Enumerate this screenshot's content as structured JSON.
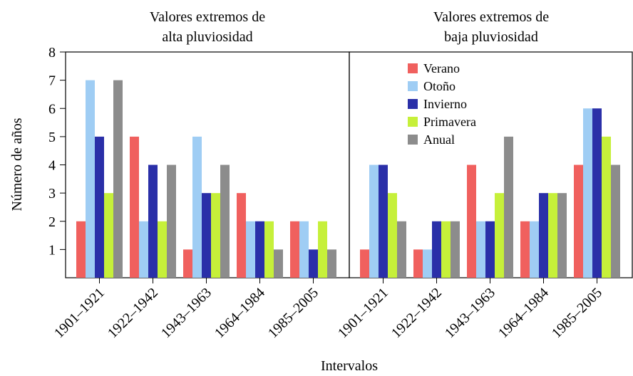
{
  "ylabel": "Número de años",
  "xlabel": "Intervalos",
  "chart_data": [
    {
      "type": "bar",
      "title": [
        "Valores extremos de",
        "alta pluviosidad"
      ],
      "categories": [
        "1901–1921",
        "1922–1942",
        "1943–1963",
        "1964–1984",
        "1985–2005"
      ],
      "series": [
        {
          "color": "#f0605e",
          "values": [
            2,
            5,
            1,
            3,
            2
          ]
        },
        {
          "color": "#9fcdf4",
          "values": [
            7,
            2,
            5,
            2,
            2
          ]
        },
        {
          "color": "#2a2fa8",
          "values": [
            5,
            4,
            3,
            2,
            1
          ]
        },
        {
          "color": "#c6f03a",
          "values": [
            3,
            2,
            3,
            2,
            2
          ]
        },
        {
          "color": "#8c8c8c",
          "values": [
            7,
            4,
            4,
            1,
            1
          ]
        }
      ],
      "ylim": [
        0,
        8
      ],
      "yticks": [
        1,
        2,
        3,
        4,
        5,
        6,
        7,
        8
      ]
    },
    {
      "type": "bar",
      "title": [
        "Valores extremos de",
        "baja pluviosidad"
      ],
      "categories": [
        "1901–1921",
        "1922–1942",
        "1943–1963",
        "1964–1984",
        "1985–2005"
      ],
      "series": [
        {
          "name": "Verano",
          "color": "#f0605e",
          "values": [
            1,
            1,
            4,
            2,
            4
          ]
        },
        {
          "name": "Otoño",
          "color": "#9fcdf4",
          "values": [
            4,
            1,
            2,
            2,
            6
          ]
        },
        {
          "name": "Invierno",
          "color": "#2a2fa8",
          "values": [
            4,
            2,
            2,
            3,
            6
          ]
        },
        {
          "name": "Primavera",
          "color": "#c6f03a",
          "values": [
            3,
            2,
            3,
            3,
            5
          ]
        },
        {
          "name": "Anual",
          "color": "#8c8c8c",
          "values": [
            2,
            2,
            5,
            3,
            4
          ]
        }
      ],
      "ylim": [
        0,
        8
      ],
      "legend": "upper center"
    }
  ]
}
